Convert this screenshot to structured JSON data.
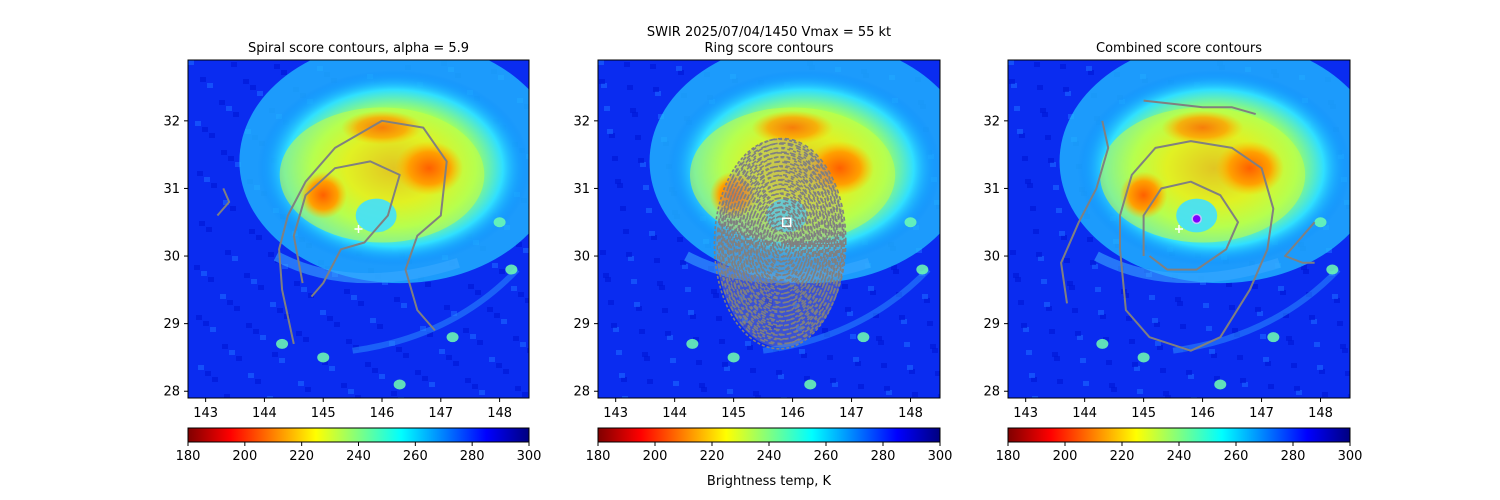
{
  "figure": {
    "suptitle_line": "SWIR  2025/07/04/1450    Vmax = 55 kt",
    "colorbar_label": "Brightness temp, K"
  },
  "colormap": {
    "name": "jet_r",
    "stops": [
      "#800000",
      "#ff0000",
      "#ff8000",
      "#ffff00",
      "#80ff80",
      "#00ffff",
      "#0080ff",
      "#0000ff",
      "#000080"
    ]
  },
  "chart_data": [
    {
      "type": "heatmap",
      "title": "Spiral score contours, alpha =  5.9",
      "xlim": [
        142.7,
        148.5
      ],
      "ylim": [
        27.9,
        32.9
      ],
      "xticks": [
        143,
        144,
        145,
        146,
        147,
        148
      ],
      "yticks": [
        28,
        29,
        30,
        31,
        32
      ],
      "colorbar": {
        "range": [
          180,
          300
        ],
        "ticks": [
          180,
          200,
          220,
          240,
          260,
          280,
          300
        ]
      },
      "markers": [
        {
          "kind": "plus",
          "x": 145.6,
          "y": 30.4,
          "color": "#ffffff"
        }
      ],
      "contours": [
        {
          "color": "#808080",
          "points": [
            [
              144.5,
              28.7
            ],
            [
              144.3,
              29.5
            ],
            [
              144.25,
              30.1
            ],
            [
              144.4,
              30.6
            ],
            [
              144.7,
              31.1
            ],
            [
              145.2,
              31.6
            ],
            [
              146.0,
              32.0
            ],
            [
              146.7,
              31.9
            ],
            [
              147.1,
              31.4
            ],
            [
              147.0,
              30.6
            ],
            [
              146.6,
              30.3
            ],
            [
              146.4,
              29.8
            ],
            [
              146.6,
              29.2
            ],
            [
              146.9,
              28.9
            ]
          ]
        },
        {
          "color": "#808080",
          "points": [
            [
              144.65,
              29.6
            ],
            [
              144.5,
              30.3
            ],
            [
              144.7,
              30.9
            ],
            [
              145.2,
              31.3
            ],
            [
              145.8,
              31.4
            ],
            [
              146.3,
              31.2
            ],
            [
              146.1,
              30.6
            ],
            [
              145.7,
              30.2
            ],
            [
              145.3,
              30.1
            ],
            [
              145.0,
              29.6
            ],
            [
              144.8,
              29.4
            ]
          ]
        },
        {
          "color": "#808080",
          "points": [
            [
              143.3,
              31.0
            ],
            [
              143.4,
              30.8
            ],
            [
              143.2,
              30.6
            ]
          ]
        }
      ]
    },
    {
      "type": "heatmap",
      "title": "Ring score contours",
      "xlim": [
        142.7,
        148.5
      ],
      "ylim": [
        27.9,
        32.9
      ],
      "xticks": [
        143,
        144,
        145,
        146,
        147,
        148
      ],
      "yticks": [
        28,
        29,
        30,
        31,
        32
      ],
      "colorbar": {
        "range": [
          180,
          300
        ],
        "ticks": [
          180,
          200,
          220,
          240,
          260,
          280,
          300
        ]
      },
      "markers": [
        {
          "kind": "square",
          "x": 145.9,
          "y": 30.5,
          "color": "#ffffff"
        }
      ],
      "ring_region": {
        "center": [
          145.8,
          30.2
        ],
        "rx": 1.1,
        "ry_top": 1.55,
        "ry_bottom": 1.55,
        "color": "#808080"
      }
    },
    {
      "type": "heatmap",
      "title": "Combined score contours",
      "xlim": [
        142.7,
        148.5
      ],
      "ylim": [
        27.9,
        32.9
      ],
      "xticks": [
        143,
        144,
        145,
        146,
        147,
        148
      ],
      "yticks": [
        28,
        29,
        30,
        31,
        32
      ],
      "colorbar": {
        "range": [
          180,
          300
        ],
        "ticks": [
          180,
          200,
          220,
          240,
          260,
          280,
          300
        ]
      },
      "markers": [
        {
          "kind": "plus",
          "x": 145.6,
          "y": 30.4,
          "color": "#ffffff"
        },
        {
          "kind": "circle",
          "x": 145.9,
          "y": 30.55,
          "color": "#8000ff"
        }
      ],
      "contours": [
        {
          "color": "#808080",
          "points": [
            [
              145.0,
              32.3
            ],
            [
              145.5,
              32.25
            ],
            [
              146.0,
              32.2
            ],
            [
              146.5,
              32.2
            ],
            [
              146.9,
              32.1
            ]
          ]
        },
        {
          "color": "#808080",
          "points": [
            [
              144.3,
              32.0
            ],
            [
              144.4,
              31.6
            ],
            [
              144.2,
              31.0
            ],
            [
              143.9,
              30.5
            ],
            [
              143.6,
              29.9
            ],
            [
              143.7,
              29.3
            ]
          ]
        },
        {
          "color": "#808080",
          "points": [
            [
              144.6,
              30.1
            ],
            [
              144.7,
              29.2
            ],
            [
              145.1,
              28.8
            ],
            [
              145.8,
              28.6
            ],
            [
              146.3,
              28.8
            ],
            [
              146.8,
              29.5
            ],
            [
              147.1,
              30.1
            ],
            [
              147.2,
              30.7
            ],
            [
              147.0,
              31.3
            ],
            [
              146.5,
              31.6
            ],
            [
              145.8,
              31.7
            ],
            [
              145.2,
              31.6
            ],
            [
              144.8,
              31.2
            ],
            [
              144.6,
              30.6
            ],
            [
              144.6,
              30.1
            ]
          ]
        },
        {
          "color": "#808080",
          "points": [
            [
              145.0,
              30.0
            ],
            [
              145.0,
              30.6
            ],
            [
              145.3,
              31.0
            ],
            [
              145.8,
              31.1
            ],
            [
              146.3,
              30.9
            ],
            [
              146.6,
              30.5
            ],
            [
              146.4,
              30.1
            ],
            [
              145.9,
              29.8
            ],
            [
              145.4,
              29.8
            ],
            [
              145.1,
              30.0
            ]
          ]
        },
        {
          "color": "#808080",
          "points": [
            [
              147.9,
              30.5
            ],
            [
              147.6,
              30.2
            ],
            [
              147.4,
              30.0
            ],
            [
              147.7,
              29.9
            ],
            [
              147.9,
              29.9
            ]
          ]
        }
      ]
    }
  ]
}
